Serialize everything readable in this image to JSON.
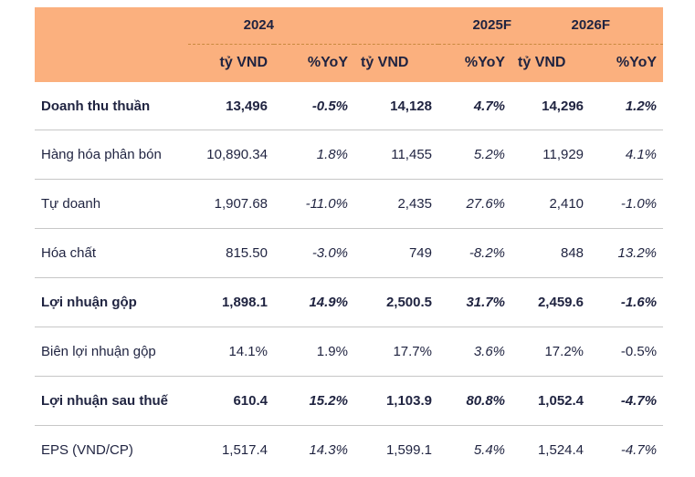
{
  "header": {
    "years": [
      "2024",
      "2025F",
      "2026F"
    ],
    "unit_label": "tỷ VND",
    "yoy_label": "%YoY"
  },
  "rows": [
    {
      "name": "Doanh thu thuần",
      "bold": true,
      "values": [
        "13,496",
        "-0.5%",
        "14,128",
        "4.7%",
        "14,296",
        "1.2%"
      ]
    },
    {
      "name": "Hàng hóa phân bón",
      "bold": false,
      "values": [
        "10,890.34",
        "1.8%",
        "11,455",
        "5.2%",
        "11,929",
        "4.1%"
      ]
    },
    {
      "name": "Tự doanh",
      "bold": false,
      "values": [
        "1,907.68",
        "-11.0%",
        "2,435",
        "27.6%",
        "2,410",
        "-1.0%"
      ]
    },
    {
      "name": "Hóa chất",
      "bold": false,
      "values": [
        "815.50",
        "-3.0%",
        "749",
        "-8.2%",
        "848",
        "13.2%"
      ]
    },
    {
      "name": "Lợi nhuận gộp",
      "bold": true,
      "values": [
        "1,898.1",
        "14.9%",
        "2,500.5",
        "31.7%",
        "2,459.6",
        "-1.6%"
      ]
    },
    {
      "name": "Biên lợi nhuận gộp",
      "bold": false,
      "values": [
        "14.1%",
        "1.9%",
        "17.7%",
        "3.6%",
        "17.2%",
        "-0.5%"
      ]
    },
    {
      "name": "Lợi nhuận sau thuế",
      "bold": true,
      "values": [
        "610.4",
        "15.2%",
        "1,103.9",
        "80.8%",
        "1,052.4",
        "-4.7%"
      ]
    },
    {
      "name": "EPS (VND/CP)",
      "bold": false,
      "values": [
        "1,517.4",
        "14.3%",
        "1,599.1",
        "5.4%",
        "1,524.4",
        "-4.7%"
      ]
    }
  ],
  "colors": {
    "header_bg": "#fbb07e",
    "text": "#1f2340",
    "rule": "#c7c7c7"
  }
}
